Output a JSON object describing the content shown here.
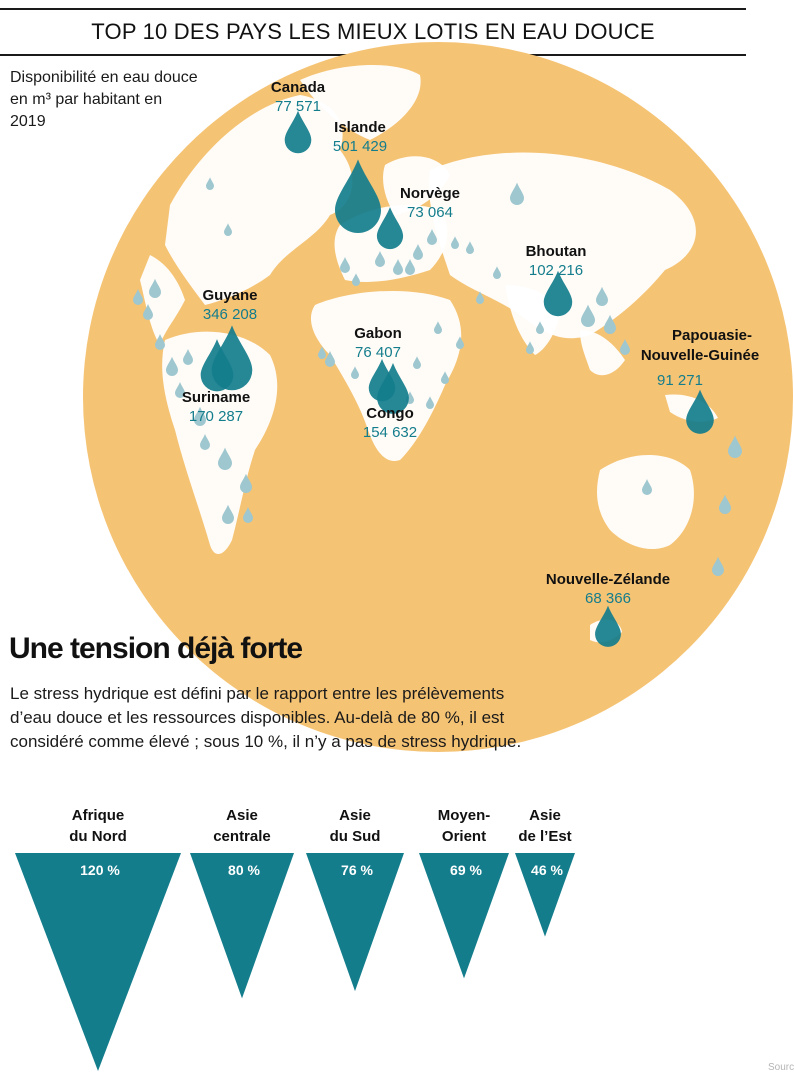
{
  "header": {
    "title": "TOP 10 DES PAYS LES MIEUX LOTIS EN EAU DOUCE"
  },
  "map_legend": {
    "text": "Disponibilité en eau douce en m³ par habitant en 2019"
  },
  "colors": {
    "globe": "#f5c374",
    "land": "#ffffff",
    "drop_main": "#147d8c",
    "drop_minor": "#9fc7cf",
    "triangle": "#147d8c"
  },
  "chart_data": [
    {
      "type": "scatter",
      "points": [
        {
          "name": "Canada",
          "value_label": "77 571",
          "value": 77571
        },
        {
          "name": "Islande",
          "value_label": "501 429",
          "value": 501429
        },
        {
          "name": "Norvège",
          "value_label": "73 064",
          "value": 73064
        },
        {
          "name": "Bhoutan",
          "value_label": "102 216",
          "value": 102216
        },
        {
          "name": "Guyane",
          "value_label": "346 208",
          "value": 346208
        },
        {
          "name": "Gabon",
          "value_label": "76 407",
          "value": 76407
        },
        {
          "name": "Papouasie-Nouvelle-Guinée",
          "value_label": "91 271",
          "value": 91271
        },
        {
          "name": "Suriname",
          "value_label": "170 287",
          "value": 170287
        },
        {
          "name": "Congo",
          "value_label": "154 632",
          "value": 154632
        },
        {
          "name": "Nouvelle-Zélande",
          "value_label": "68 366",
          "value": 68366
        }
      ]
    },
    {
      "type": "bar",
      "categories": [
        "Afrique du Nord",
        "Asie centrale",
        "Asie du Sud",
        "Moyen-Orient",
        "Asie de l’Est"
      ],
      "values": [
        120,
        80,
        76,
        69,
        46
      ],
      "value_labels": [
        "120 %",
        "80 %",
        "76 %",
        "69 %",
        "46 %"
      ],
      "unit": "%"
    }
  ],
  "section": {
    "title": "Une tension déjà forte",
    "text": "Le stress hydrique est défini par le rapport entre les prélèvements d’eau douce et les ressources disponibles. Au-delà de 80 %, il est considéré comme élevé ; sous 10 %, il n’y a pas de stress hydrique."
  },
  "source": {
    "text": "Sourc"
  }
}
